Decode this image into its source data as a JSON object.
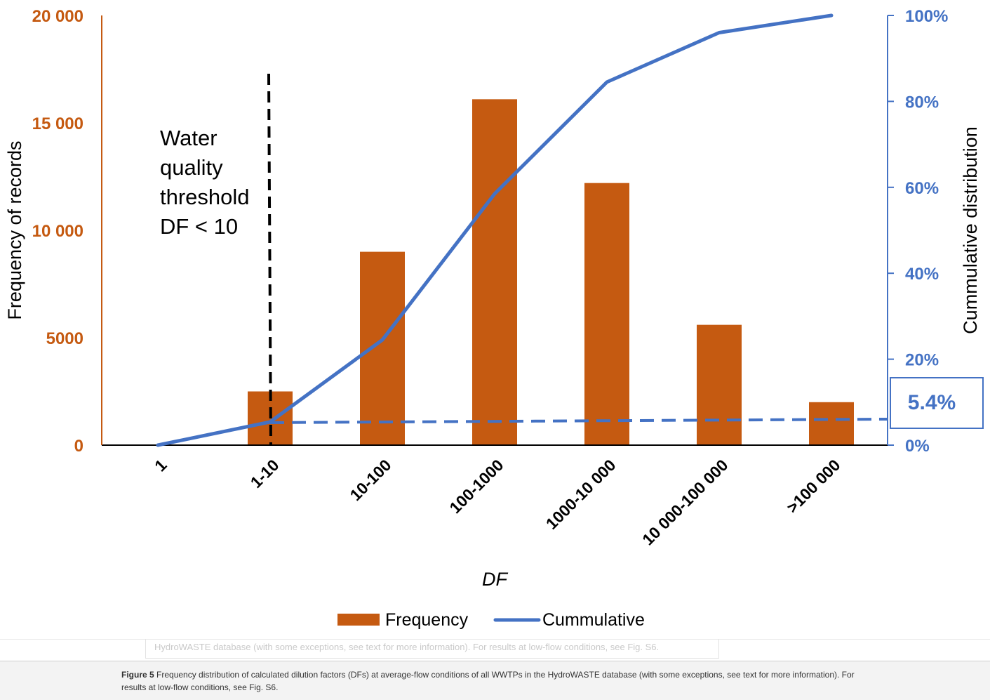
{
  "chart_data": {
    "type": "bar",
    "xlabel": "DF",
    "categories": [
      "1",
      "1-10",
      "10-100",
      "100-1000",
      "1000-10 000",
      "10 000-100 000",
      ">100 000"
    ],
    "series": [
      {
        "name": "Frequency",
        "type": "bar",
        "axis": "left",
        "color": "#C55A11",
        "values": [
          0,
          2500,
          9000,
          16100,
          12200,
          5600,
          2000
        ]
      },
      {
        "name": "Cummulative",
        "type": "line",
        "axis": "right",
        "color": "#4472C4",
        "values": [
          0,
          5.4,
          24.5,
          58.5,
          84.5,
          96,
          100
        ]
      }
    ],
    "y_left": {
      "label": "Frequency of records",
      "color": "#C55A11",
      "range": [
        0,
        20000
      ],
      "tick_labels": [
        "0",
        "5000",
        "10 000",
        "15 000",
        "20 000"
      ]
    },
    "y_right": {
      "label": "Cummulative distribution",
      "color": "#4472C4",
      "range": [
        0,
        100
      ],
      "tick_labels": [
        "0%",
        "20%",
        "40%",
        "60%",
        "80%",
        "100%"
      ]
    },
    "annotations": {
      "threshold_lines": [
        "Water",
        "quality",
        "threshold",
        "DF <  10"
      ],
      "threshold_at_category": "1-10",
      "callout": "5.4%",
      "callout_value": 5.4
    },
    "legend": {
      "position": "bottom-center",
      "items": [
        "Frequency",
        "Cummulative"
      ]
    },
    "grid": false
  },
  "caption": {
    "ghost_text": "HydroWASTE database (with some exceptions, see text for more information). For results at low-flow conditions, see Fig. S6.",
    "label": "Figure 5",
    "text": " Frequency distribution of calculated dilution factors (DFs) at average-flow conditions of all WWTPs in the HydroWASTE database (with some exceptions, see text for more information). For results at low-flow conditions, see Fig. S6."
  }
}
